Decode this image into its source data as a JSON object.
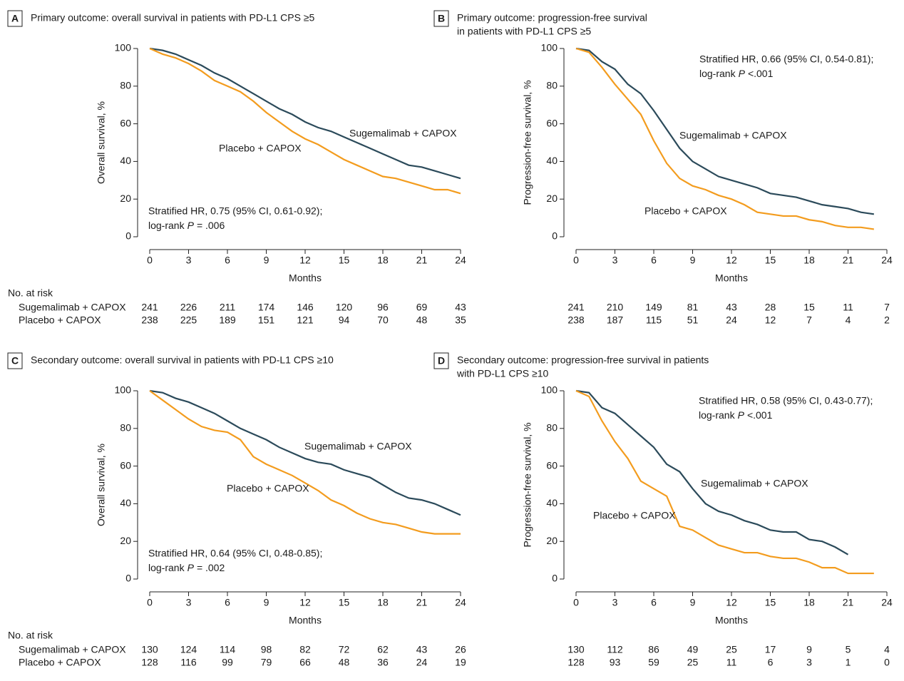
{
  "chart_data": [
    {
      "type": "line",
      "panel": "A",
      "title": [
        "Primary outcome: overall survival in patients with PD-L1 CPS ≥5"
      ],
      "xlabel": "Months",
      "ylabel": "Overall survival, %",
      "xlim": [
        0,
        24
      ],
      "ylim": [
        0,
        100
      ],
      "xticks": [
        0,
        3,
        6,
        9,
        12,
        15,
        18,
        21,
        24
      ],
      "yticks": [
        0,
        20,
        40,
        60,
        80,
        100
      ],
      "hr_text": "Stratified HR, 0.75 (95% CI, 0.61-0.92);",
      "p_prefix": "log-rank",
      "p_symbol": "P",
      "p_value": "= .006",
      "risk_table_label": "No. at risk",
      "series": [
        {
          "name": "Sugemalimab + CAPOX",
          "color": "#2b4a5a",
          "x": [
            0,
            1,
            2,
            3,
            4,
            5,
            6,
            7,
            8,
            9,
            10,
            11,
            12,
            13,
            14,
            15,
            16,
            17,
            18,
            19,
            20,
            21,
            22,
            23,
            24
          ],
          "values": [
            100,
            99,
            97,
            94,
            91,
            87,
            84,
            80,
            76,
            72,
            68,
            65,
            61,
            58,
            56,
            53,
            50,
            47,
            44,
            41,
            38,
            37,
            35,
            33,
            31
          ],
          "at_risk": [
            241,
            226,
            211,
            174,
            146,
            120,
            96,
            69,
            43
          ]
        },
        {
          "name": "Placebo + CAPOX",
          "color": "#f39c1e",
          "x": [
            0,
            1,
            2,
            3,
            4,
            5,
            6,
            7,
            8,
            9,
            10,
            11,
            12,
            13,
            14,
            15,
            16,
            17,
            18,
            19,
            20,
            21,
            22,
            23,
            24
          ],
          "values": [
            100,
            97,
            95,
            92,
            88,
            83,
            80,
            77,
            72,
            66,
            61,
            56,
            52,
            49,
            45,
            41,
            38,
            35,
            32,
            31,
            29,
            27,
            25,
            25,
            23
          ],
          "at_risk": [
            238,
            225,
            189,
            151,
            121,
            94,
            70,
            48,
            35
          ]
        }
      ]
    },
    {
      "type": "line",
      "panel": "B",
      "title": [
        "Primary outcome: progression-free survival",
        "in patients with PD-L1 CPS ≥5"
      ],
      "xlabel": "Months",
      "ylabel": "Progression-free survival, %",
      "xlim": [
        0,
        24
      ],
      "ylim": [
        0,
        100
      ],
      "xticks": [
        0,
        3,
        6,
        9,
        12,
        15,
        18,
        21,
        24
      ],
      "yticks": [
        0,
        20,
        40,
        60,
        80,
        100
      ],
      "hr_text": "Stratified HR, 0.66 (95% CI, 0.54-0.81);",
      "p_prefix": "log-rank",
      "p_symbol": "P",
      "p_value": "<.001",
      "series": [
        {
          "name": "Sugemalimab + CAPOX",
          "color": "#2b4a5a",
          "x": [
            0,
            1,
            2,
            3,
            4,
            5,
            6,
            7,
            8,
            9,
            10,
            11,
            12,
            13,
            14,
            15,
            16,
            17,
            18,
            19,
            20,
            21,
            22,
            23
          ],
          "values": [
            100,
            99,
            93,
            89,
            81,
            76,
            67,
            57,
            47,
            40,
            36,
            32,
            30,
            28,
            26,
            23,
            22,
            21,
            19,
            17,
            16,
            15,
            13,
            12
          ],
          "at_risk": [
            241,
            210,
            149,
            81,
            43,
            28,
            15,
            11,
            7
          ]
        },
        {
          "name": "Placebo + CAPOX",
          "color": "#f39c1e",
          "x": [
            0,
            1,
            2,
            3,
            4,
            5,
            6,
            7,
            8,
            9,
            10,
            11,
            12,
            13,
            14,
            15,
            16,
            17,
            18,
            19,
            20,
            21,
            22,
            23
          ],
          "values": [
            100,
            98,
            90,
            81,
            73,
            65,
            51,
            39,
            31,
            27,
            25,
            22,
            20,
            17,
            13,
            12,
            11,
            11,
            9,
            8,
            6,
            5,
            5,
            4
          ],
          "at_risk": [
            238,
            187,
            115,
            51,
            24,
            12,
            7,
            4,
            2
          ]
        }
      ]
    },
    {
      "type": "line",
      "panel": "C",
      "title": [
        "Secondary outcome: overall survival in patients with PD-L1 CPS ≥10"
      ],
      "xlabel": "Months",
      "ylabel": "Overall survival, %",
      "xlim": [
        0,
        24
      ],
      "ylim": [
        0,
        100
      ],
      "xticks": [
        0,
        3,
        6,
        9,
        12,
        15,
        18,
        21,
        24
      ],
      "yticks": [
        0,
        20,
        40,
        60,
        80,
        100
      ],
      "hr_text": "Stratified HR, 0.64 (95% CI, 0.48-0.85);",
      "p_prefix": "log-rank",
      "p_symbol": "P",
      "p_value": "= .002",
      "risk_table_label": "No. at risk",
      "series": [
        {
          "name": "Sugemalimab + CAPOX",
          "color": "#2b4a5a",
          "x": [
            0,
            1,
            2,
            3,
            4,
            5,
            6,
            7,
            8,
            9,
            10,
            11,
            12,
            13,
            14,
            15,
            16,
            17,
            18,
            19,
            20,
            21,
            22,
            23,
            24
          ],
          "values": [
            100,
            99,
            96,
            94,
            91,
            88,
            84,
            80,
            77,
            74,
            70,
            67,
            64,
            62,
            61,
            58,
            56,
            54,
            50,
            46,
            43,
            42,
            40,
            37,
            34
          ],
          "at_risk": [
            130,
            124,
            114,
            98,
            82,
            72,
            62,
            43,
            26
          ]
        },
        {
          "name": "Placebo + CAPOX",
          "color": "#f39c1e",
          "x": [
            0,
            1,
            2,
            3,
            4,
            5,
            6,
            7,
            8,
            9,
            10,
            11,
            12,
            13,
            14,
            15,
            16,
            17,
            18,
            19,
            20,
            21,
            22,
            23,
            24
          ],
          "values": [
            100,
            95,
            90,
            85,
            81,
            79,
            78,
            74,
            65,
            61,
            58,
            55,
            51,
            47,
            42,
            39,
            35,
            32,
            30,
            29,
            27,
            25,
            24,
            24,
            24
          ],
          "at_risk": [
            128,
            116,
            99,
            79,
            66,
            48,
            36,
            24,
            19
          ]
        }
      ]
    },
    {
      "type": "line",
      "panel": "D",
      "title": [
        "Secondary outcome: progression-free survival in patients",
        "with PD-L1 CPS ≥10"
      ],
      "xlabel": "Months",
      "ylabel": "Progression-free survival, %",
      "xlim": [
        0,
        24
      ],
      "ylim": [
        0,
        100
      ],
      "xticks": [
        0,
        3,
        6,
        9,
        12,
        15,
        18,
        21,
        24
      ],
      "yticks": [
        0,
        20,
        40,
        60,
        80,
        100
      ],
      "hr_text": "Stratified HR, 0.58 (95% CI, 0.43-0.77);",
      "p_prefix": "log-rank",
      "p_symbol": "P",
      "p_value": "<.001",
      "series": [
        {
          "name": "Sugemalimab + CAPOX",
          "color": "#2b4a5a",
          "x": [
            0,
            1,
            2,
            3,
            4,
            5,
            6,
            7,
            8,
            9,
            10,
            11,
            12,
            13,
            14,
            15,
            16,
            17,
            18,
            19,
            20,
            21
          ],
          "values": [
            100,
            99,
            91,
            88,
            82,
            76,
            70,
            61,
            57,
            48,
            40,
            36,
            34,
            31,
            29,
            26,
            25,
            25,
            21,
            20,
            17,
            13
          ],
          "at_risk": [
            130,
            112,
            86,
            49,
            25,
            17,
            9,
            5,
            4
          ]
        },
        {
          "name": "Placebo + CAPOX",
          "color": "#f39c1e",
          "x": [
            0,
            1,
            2,
            3,
            4,
            5,
            6,
            7,
            8,
            9,
            10,
            11,
            12,
            13,
            14,
            15,
            16,
            17,
            18,
            19,
            20,
            21,
            22,
            23
          ],
          "values": [
            100,
            97,
            84,
            73,
            64,
            52,
            48,
            44,
            28,
            26,
            22,
            18,
            16,
            14,
            14,
            12,
            11,
            11,
            9,
            6,
            6,
            3,
            3,
            3
          ],
          "at_risk": [
            128,
            93,
            59,
            25,
            11,
            6,
            3,
            1,
            0
          ]
        }
      ]
    }
  ]
}
